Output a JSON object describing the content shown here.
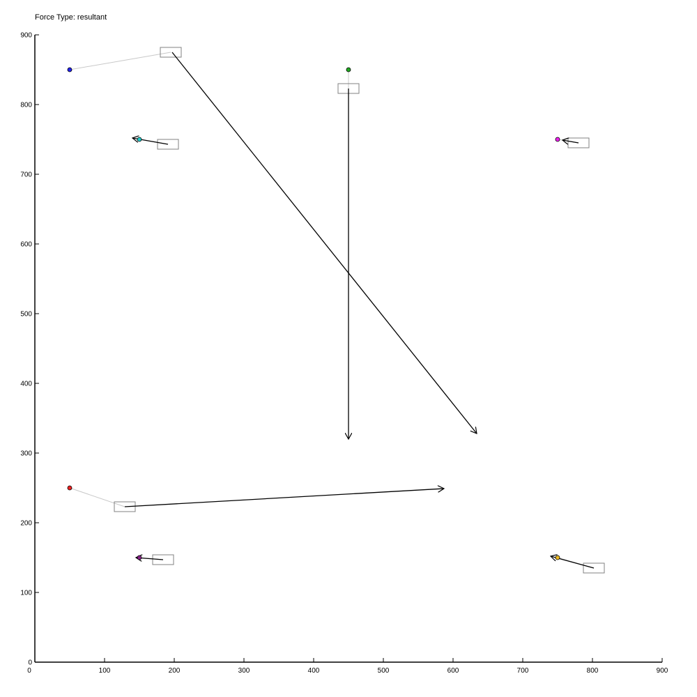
{
  "title": "Force Type: resultant",
  "chart_data": {
    "type": "scatter",
    "xlim": [
      0,
      900
    ],
    "ylim": [
      0,
      900
    ],
    "x_ticks": [
      0,
      100,
      200,
      300,
      400,
      500,
      600,
      700,
      800,
      900
    ],
    "y_ticks": [
      0,
      100,
      200,
      300,
      400,
      500,
      600,
      700,
      800,
      900
    ],
    "grid": false,
    "particles": [
      {
        "x": 50,
        "y": 850,
        "color": "#2222ee",
        "label_box": [
          195,
          875
        ],
        "force": {
          "from": [
            197,
            875
          ],
          "to": [
            634,
            328
          ]
        }
      },
      {
        "x": 450,
        "y": 850,
        "color": "#22aa22",
        "label_box": [
          450,
          823
        ],
        "force": {
          "from": [
            450,
            823
          ],
          "to": [
            450,
            320
          ]
        }
      },
      {
        "x": 150,
        "y": 750,
        "color": "#22cccc",
        "label_box": [
          191,
          743
        ],
        "force": {
          "from": [
            191,
            743
          ],
          "to": [
            140,
            752
          ]
        }
      },
      {
        "x": 750,
        "y": 750,
        "color": "#ee22ee",
        "label_box": [
          780,
          745
        ],
        "force": {
          "from": [
            780,
            745
          ],
          "to": [
            757,
            749
          ]
        }
      },
      {
        "x": 50,
        "y": 250,
        "color": "#ee2222",
        "label_box": [
          129,
          223
        ],
        "force": {
          "from": [
            129,
            223
          ],
          "to": [
            587,
            249
          ]
        }
      },
      {
        "x": 150,
        "y": 150,
        "color": "#882288",
        "label_box": [
          184,
          147
        ],
        "force": {
          "from": [
            184,
            147
          ],
          "to": [
            145,
            150
          ]
        }
      },
      {
        "x": 750,
        "y": 150,
        "color": "#eebb22",
        "label_box": [
          802,
          135
        ],
        "force": {
          "from": [
            802,
            135
          ],
          "to": [
            740,
            152
          ]
        }
      }
    ]
  }
}
